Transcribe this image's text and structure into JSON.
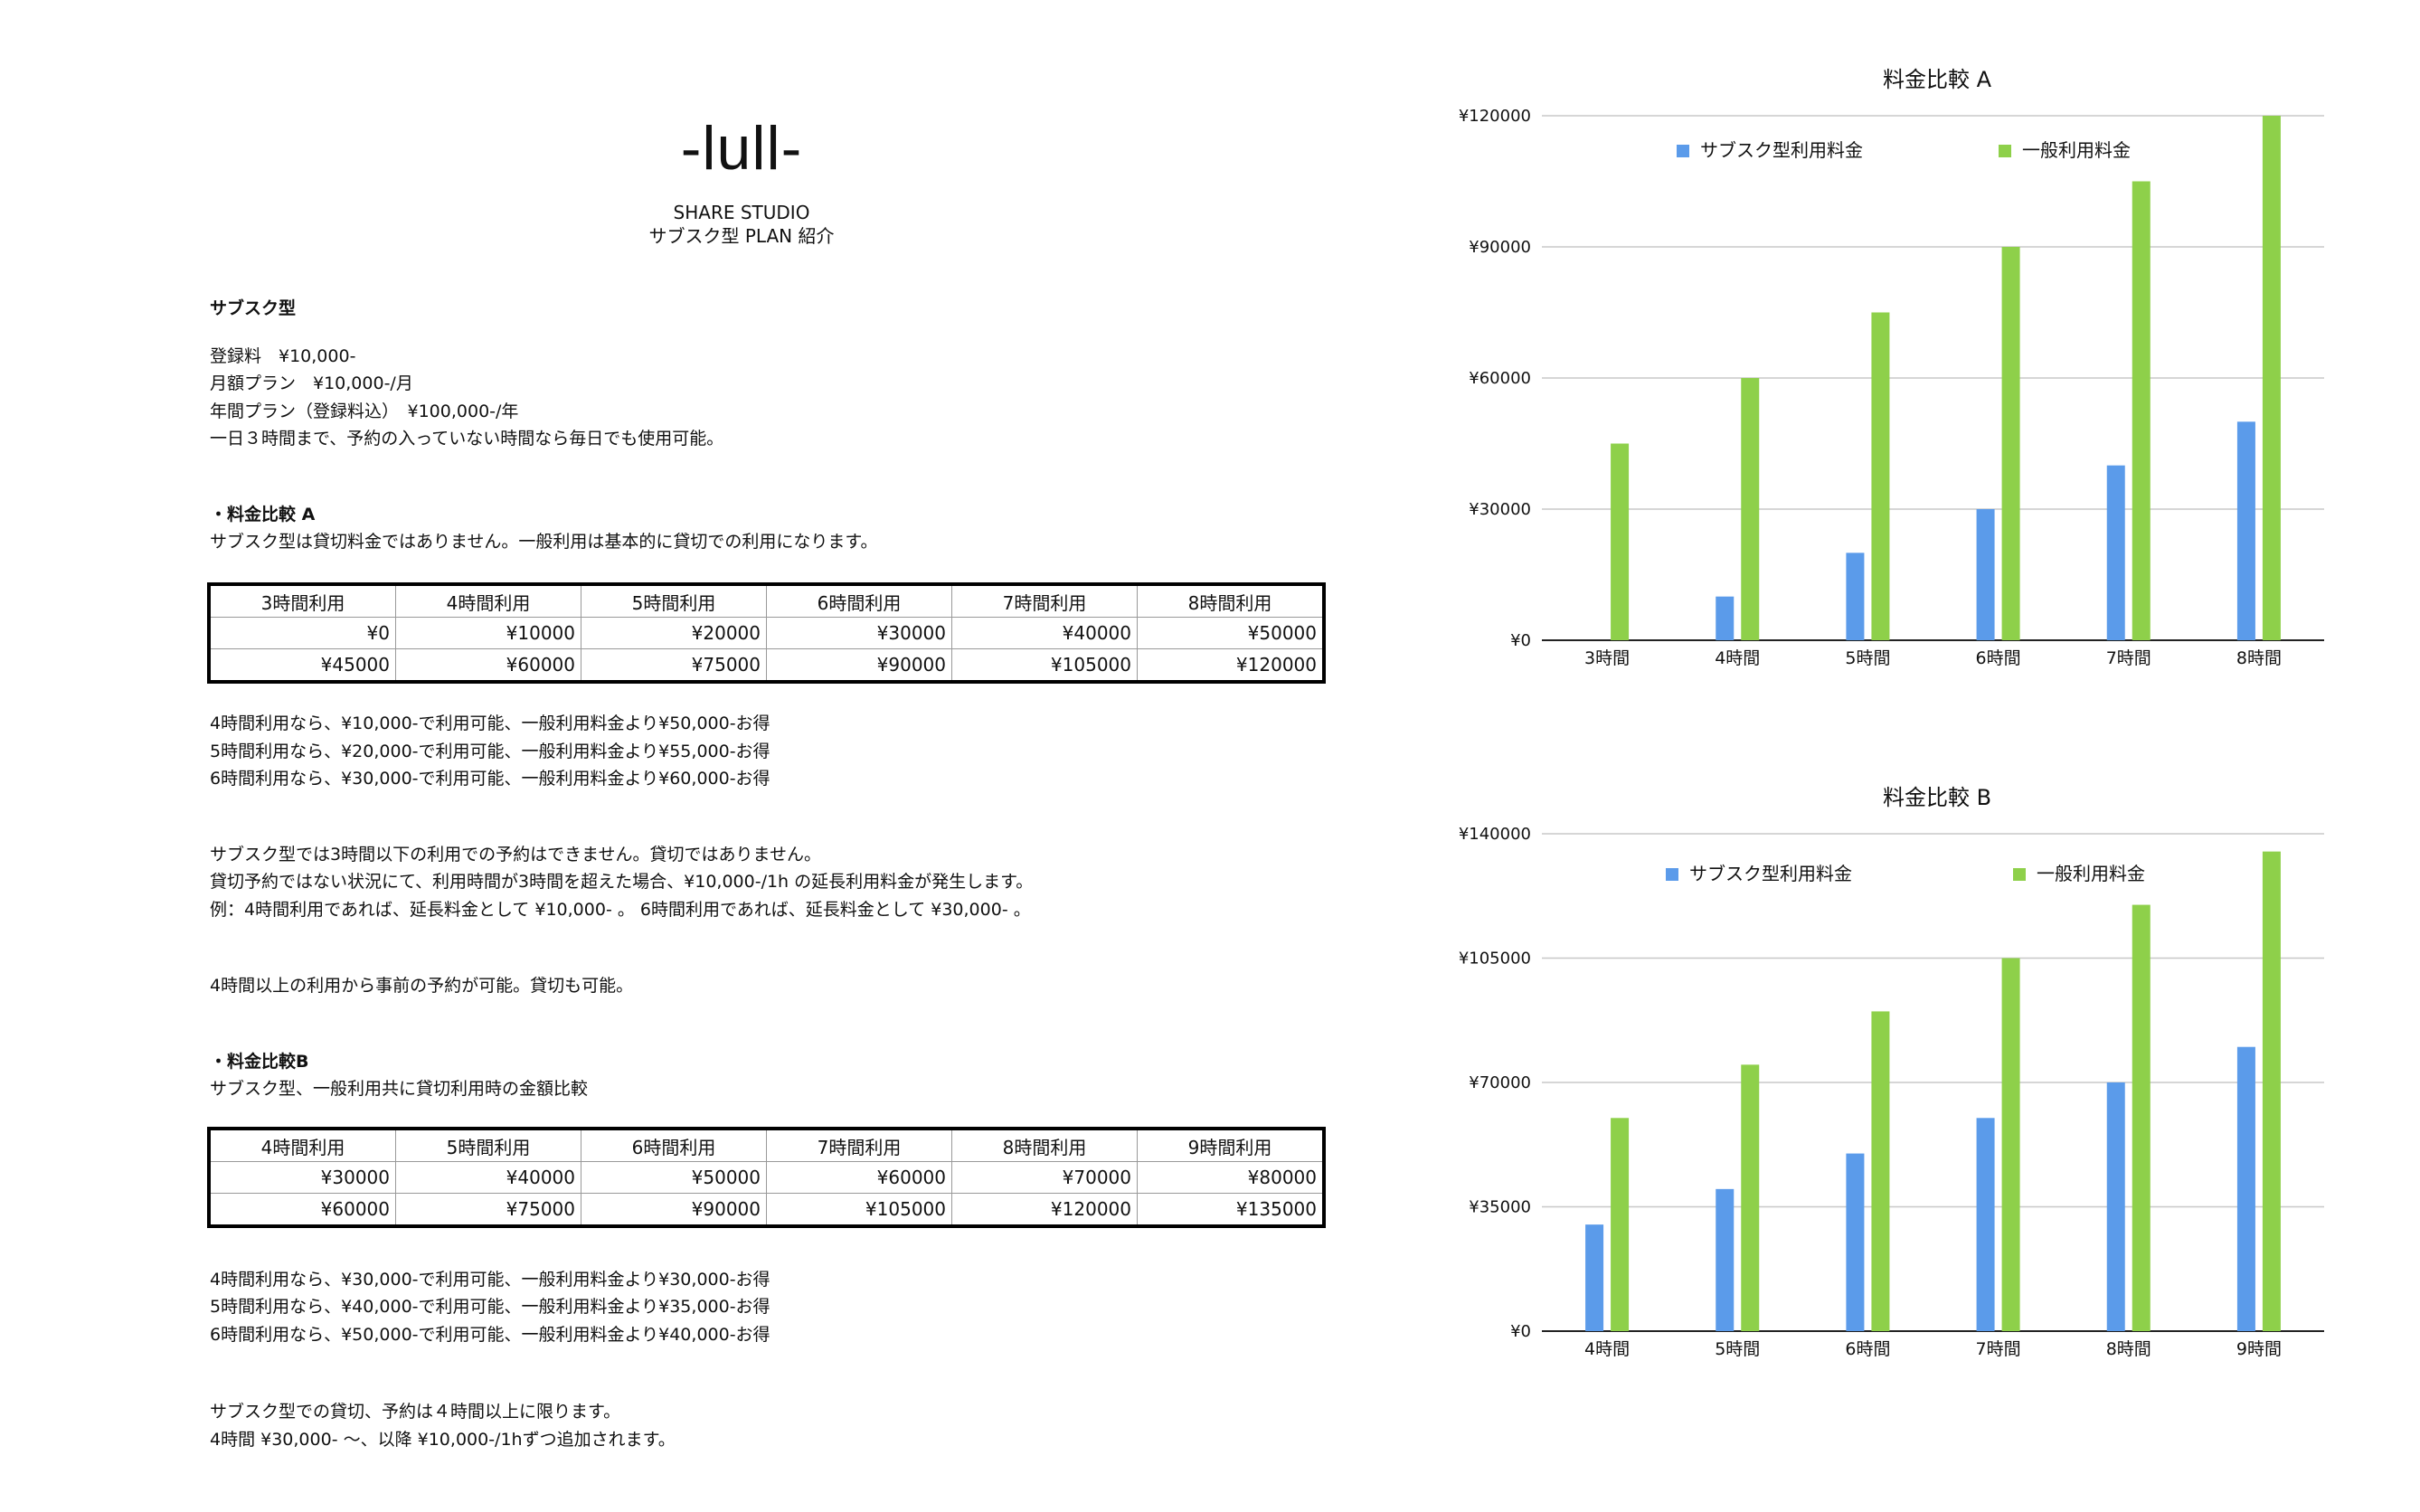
{
  "header": {
    "logo": "-lull-",
    "subtitle_1": "SHARE STUDIO",
    "subtitle_2": "サブスク型 PLAN 紹介"
  },
  "subsc": {
    "heading": "サブスク型",
    "lines": [
      "登録料　¥10,000-",
      "月額プラン　¥10,000-/月",
      "年間プラン（登録料込）　¥100,000-/年",
      "一日３時間まで、予約の入っていない時間なら毎日でも使用可能。"
    ]
  },
  "compare_a": {
    "heading": "・料金比較 A",
    "desc": "サブスク型は貸切料金ではありません。一般利用は基本的に貸切での利用になります。",
    "table": {
      "headers": [
        "3時間利用",
        "4時間利用",
        "5時間利用",
        "6時間利用",
        "7時間利用",
        "8時間利用"
      ],
      "rows": [
        [
          "¥0",
          "¥10000",
          "¥20000",
          "¥30000",
          "¥40000",
          "¥50000"
        ],
        [
          "¥45000",
          "¥60000",
          "¥75000",
          "¥90000",
          "¥105000",
          "¥120000"
        ]
      ]
    },
    "notes": [
      "4時間利用なら、¥10,000-で利用可能、一般利用料金より¥50,000-お得",
      "5時間利用なら、¥20,000-で利用可能、一般利用料金より¥55,000-お得",
      "6時間利用なら、¥30,000-で利用可能、一般利用料金より¥60,000-お得"
    ],
    "rules": [
      "サブスク型では3時間以下の利用での予約はできません。貸切ではありません。",
      "貸切予約ではない状況にて、利用時間が3時間を超えた場合、¥10,000-/1h の延長利用料金が発生します。",
      "例：4時間利用であれば、延長料金として ¥10,000- 。 6時間利用であれば、延長料金として ¥30,000- 。"
    ],
    "rule_extra": "4時間以上の利用から事前の予約が可能。貸切も可能。"
  },
  "compare_b": {
    "heading": "・料金比較B",
    "desc": "サブスク型、一般利用共に貸切利用時の金額比較",
    "table": {
      "headers": [
        "4時間利用",
        "5時間利用",
        "6時間利用",
        "7時間利用",
        "8時間利用",
        "9時間利用"
      ],
      "rows": [
        [
          "¥30000",
          "¥40000",
          "¥50000",
          "¥60000",
          "¥70000",
          "¥80000"
        ],
        [
          "¥60000",
          "¥75000",
          "¥90000",
          "¥105000",
          "¥120000",
          "¥135000"
        ]
      ]
    },
    "notes": [
      "4時間利用なら、¥30,000-で利用可能、一般利用料金より¥30,000-お得",
      "5時間利用なら、¥40,000-で利用可能、一般利用料金より¥35,000-お得",
      "6時間利用なら、¥50,000-で利用可能、一般利用料金より¥40,000-お得"
    ],
    "footer": [
      "サブスク型での貸切、予約は４時間以上に限ります。",
      "4時間 ¥30,000- 〜、以降 ¥10,000-/1hずつ追加されます。"
    ]
  },
  "chart_data": [
    {
      "type": "bar",
      "title": "料金比較 A",
      "categories": [
        "3時間",
        "4時間",
        "5時間",
        "6時間",
        "7時間",
        "8時間"
      ],
      "ylim": [
        0,
        120000
      ],
      "yticks": [
        "¥0",
        "¥30000",
        "¥60000",
        "¥90000",
        "¥120000"
      ],
      "grid": true,
      "legend": "top",
      "series": [
        {
          "name": "サブスク型利用料金",
          "color": "#5b9bea",
          "values": [
            0,
            10000,
            20000,
            30000,
            40000,
            50000
          ]
        },
        {
          "name": "一般利用料金",
          "color": "#8ed04a",
          "values": [
            45000,
            60000,
            75000,
            90000,
            105000,
            120000
          ]
        }
      ]
    },
    {
      "type": "bar",
      "title": "料金比較 B",
      "categories": [
        "4時間",
        "5時間",
        "6時間",
        "7時間",
        "8時間",
        "9時間"
      ],
      "ylim": [
        0,
        140000
      ],
      "yticks": [
        "¥0",
        "¥35000",
        "¥70000",
        "¥105000",
        "¥140000"
      ],
      "grid": true,
      "legend": "top",
      "series": [
        {
          "name": "サブスク型利用料金",
          "color": "#5b9bea",
          "values": [
            30000,
            40000,
            50000,
            60000,
            70000,
            80000
          ]
        },
        {
          "name": "一般利用料金",
          "color": "#8ed04a",
          "values": [
            60000,
            75000,
            90000,
            105000,
            120000,
            135000
          ]
        }
      ]
    }
  ]
}
